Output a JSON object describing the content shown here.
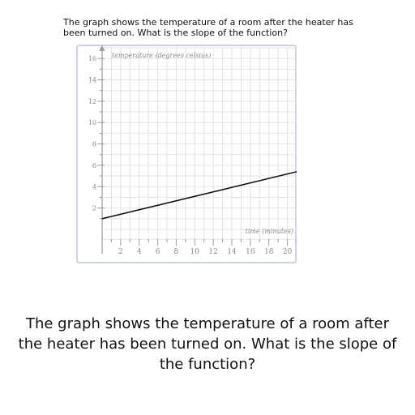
{
  "question": {
    "top_text": "The graph shows the temperature of a room after the heater has been turned on. What is the slope of the function?",
    "bottom_text": "The graph shows the temperature of a room after the heater has been turned on. What is the slope of the function?"
  },
  "chart_data": {
    "type": "line",
    "title": "",
    "ylabel": "temperature (degrees celsius)",
    "xlabel": "time (minutes)",
    "xlim": [
      0,
      21
    ],
    "ylim": [
      0,
      17
    ],
    "grid": true,
    "x_ticks": [
      2,
      4,
      6,
      8,
      10,
      12,
      14,
      16,
      18,
      20
    ],
    "y_ticks": [
      2,
      4,
      6,
      8,
      10,
      12,
      14,
      16
    ],
    "series": [
      {
        "x": [
          0,
          21
        ],
        "y": [
          1,
          5.4
        ]
      }
    ]
  },
  "colors": {
    "grid": "#e3e3e3",
    "axis": "#9a9a9a",
    "tick_label": "#888888",
    "line": "#111111",
    "frame": "#c9d3e2"
  }
}
